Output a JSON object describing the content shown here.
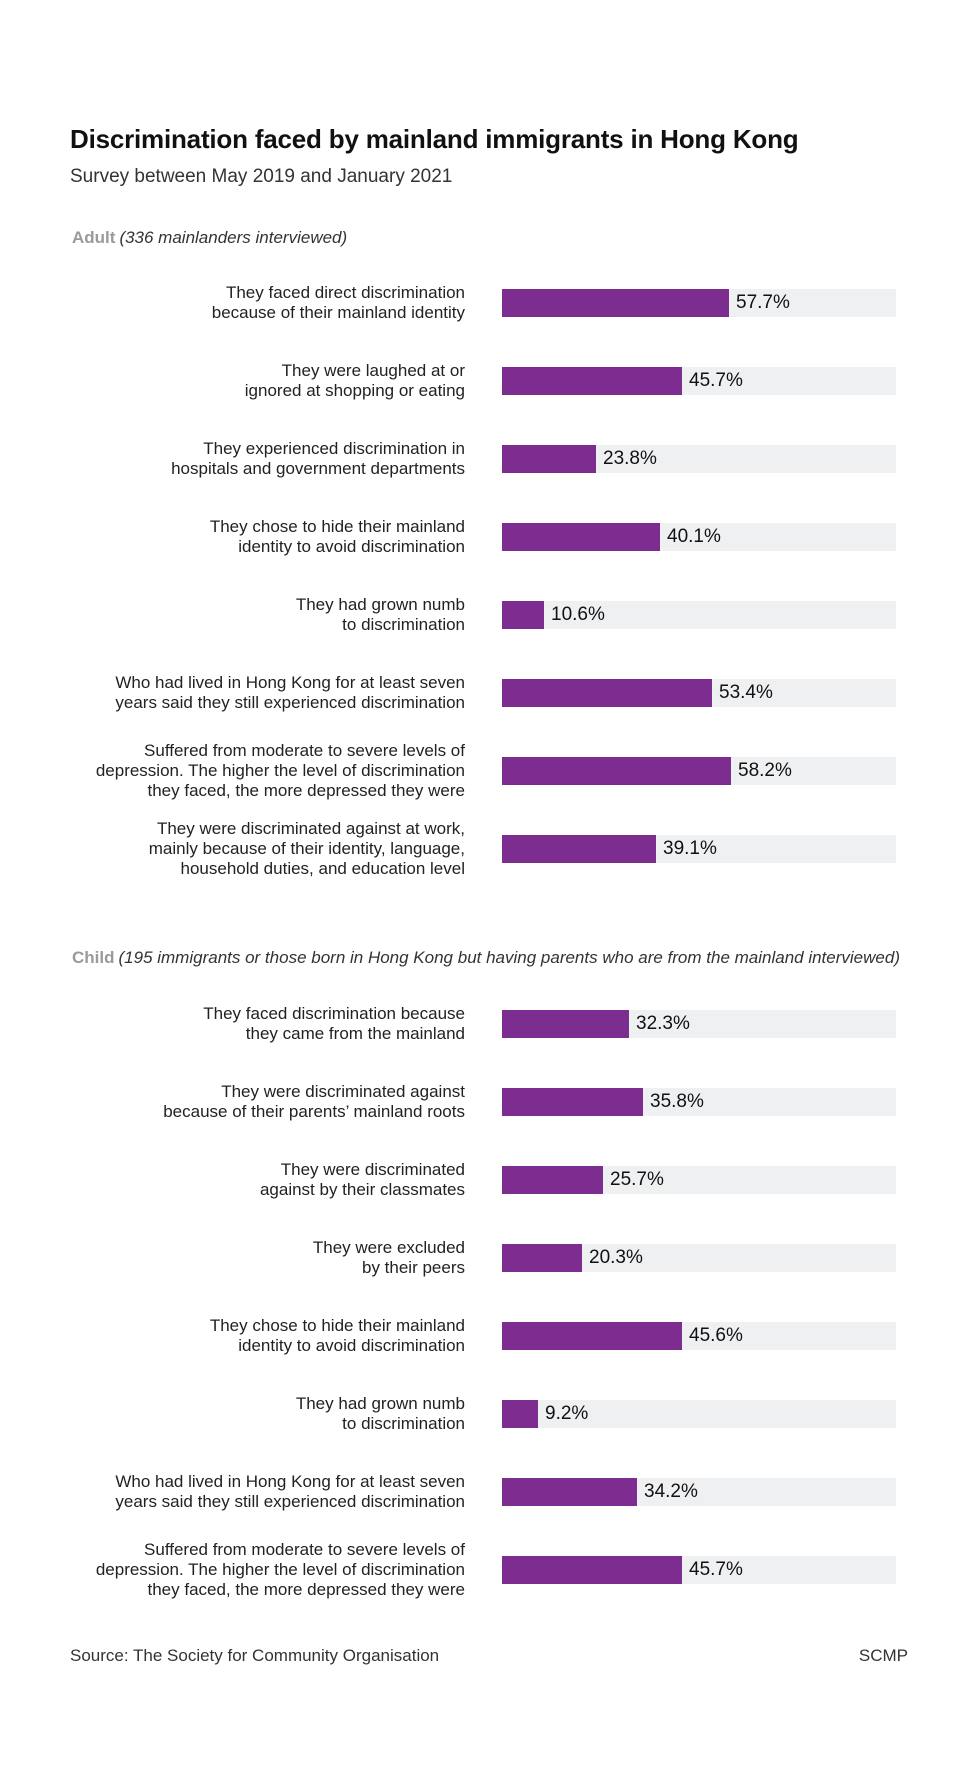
{
  "chart_data": {
    "type": "bar",
    "orientation": "horizontal",
    "title": "Discrimination faced by mainland immigrants in Hong Kong",
    "subtitle": "Survey between May 2019 and January 2021",
    "xlim": [
      0,
      100
    ],
    "unit": "%",
    "bar_color": "#7d2d90",
    "track_color": "#eff0f2",
    "sections": [
      {
        "name": "Adult",
        "note": "(336 mainlanders interviewed)",
        "items": [
          {
            "label": "They faced direct discrimination\nbecause of their mainland identity",
            "value": 57.7,
            "value_label": "57.7%"
          },
          {
            "label": "They were laughed at or\nignored at shopping or eating",
            "value": 45.7,
            "value_label": "45.7%"
          },
          {
            "label": "They experienced discrimination in\nhospitals and government departments",
            "value": 23.8,
            "value_label": "23.8%"
          },
          {
            "label": "They chose to hide their mainland\nidentity to avoid discrimination",
            "value": 40.1,
            "value_label": "40.1%"
          },
          {
            "label": "They had grown numb\nto discrimination",
            "value": 10.6,
            "value_label": "10.6%"
          },
          {
            "label": "Who had lived in Hong Kong for at least seven\nyears said they still experienced discrimination",
            "value": 53.4,
            "value_label": "53.4%"
          },
          {
            "label": "Suffered from moderate to severe levels of\ndepression. The higher the level of discrimination\nthey faced, the more depressed they were",
            "value": 58.2,
            "value_label": "58.2%"
          },
          {
            "label": "They were discriminated against at work,\nmainly because of their identity, language,\nhousehold duties, and education level",
            "value": 39.1,
            "value_label": "39.1%"
          }
        ]
      },
      {
        "name": "Child",
        "note": "(195 immigrants or those born in Hong Kong but having parents who are from the mainland interviewed)",
        "items": [
          {
            "label": "They faced discrimination because\nthey came from the mainland",
            "value": 32.3,
            "value_label": "32.3%"
          },
          {
            "label": "They were discriminated against\nbecause of their parents’ mainland roots",
            "value": 35.8,
            "value_label": "35.8%"
          },
          {
            "label": "They were discriminated\nagainst by their classmates",
            "value": 25.7,
            "value_label": "25.7%"
          },
          {
            "label": "They were excluded\nby their peers",
            "value": 20.3,
            "value_label": "20.3%"
          },
          {
            "label": "They chose to hide their mainland\nidentity to avoid discrimination",
            "value": 45.6,
            "value_label": "45.6%"
          },
          {
            "label": "They had grown numb\nto discrimination",
            "value": 9.2,
            "value_label": "9.2%"
          },
          {
            "label": "Who had lived in Hong Kong for at least seven\nyears said they still experienced discrimination",
            "value": 34.2,
            "value_label": "34.2%"
          },
          {
            "label": "Suffered from moderate to severe levels of\ndepression. The higher the level of discrimination\nthey faced, the more depressed they were",
            "value": 45.7,
            "value_label": "45.7%"
          }
        ]
      }
    ]
  },
  "footer": {
    "source": "Source: The Society for Community Organisation",
    "brand": "SCMP"
  }
}
